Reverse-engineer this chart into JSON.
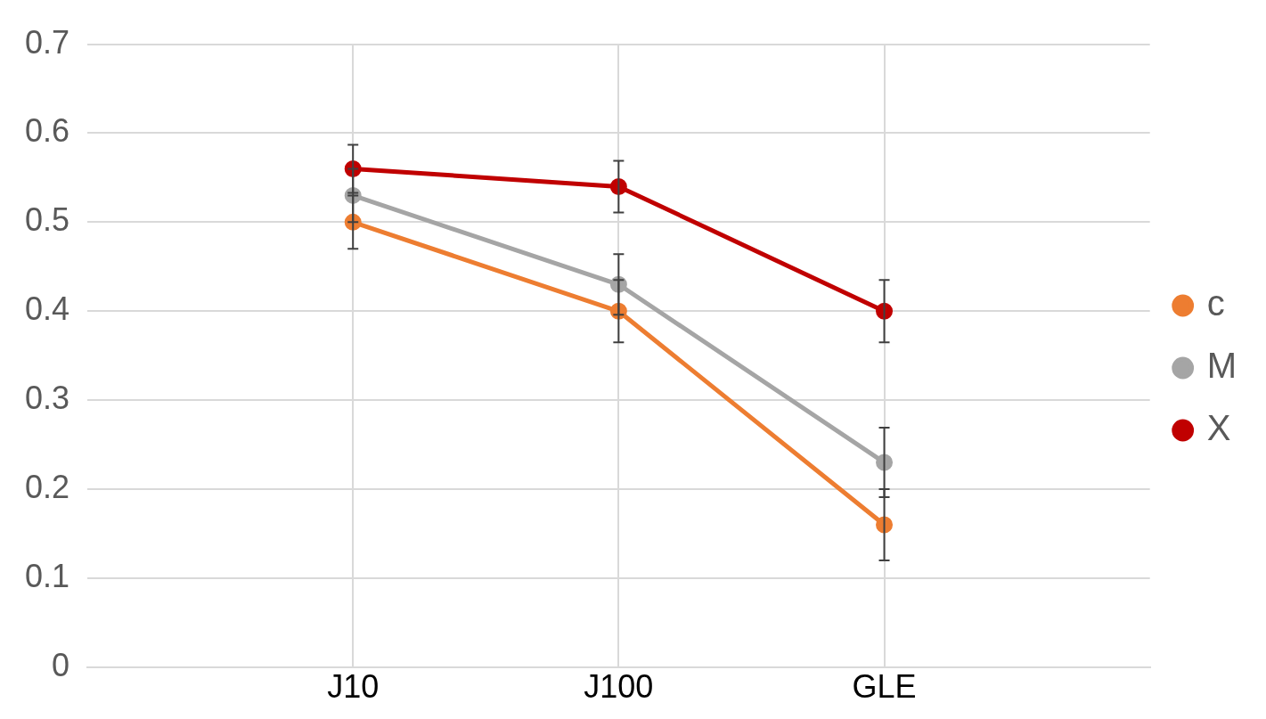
{
  "chart_data": {
    "type": "line",
    "categories": [
      "J10",
      "J100",
      "GLE"
    ],
    "series": [
      {
        "name": "c",
        "color": "#ed7d31",
        "values": [
          0.5,
          0.4,
          0.16
        ],
        "errors": [
          0.03,
          0.035,
          0.04
        ]
      },
      {
        "name": "M",
        "color": "#a5a5a5",
        "values": [
          0.53,
          0.43,
          0.23
        ],
        "errors": [
          0.03,
          0.034,
          0.039
        ]
      },
      {
        "name": "X",
        "color": "#c00000",
        "values": [
          0.56,
          0.54,
          0.4
        ],
        "errors": [
          0.027,
          0.029,
          0.035
        ]
      }
    ],
    "ylim": [
      0,
      0.7
    ],
    "yticks": [
      0,
      0.1,
      0.2,
      0.3,
      0.4,
      0.5,
      0.6,
      0.7
    ],
    "grid": true,
    "legend": "right",
    "marker": "circle",
    "line_style": "solid"
  }
}
